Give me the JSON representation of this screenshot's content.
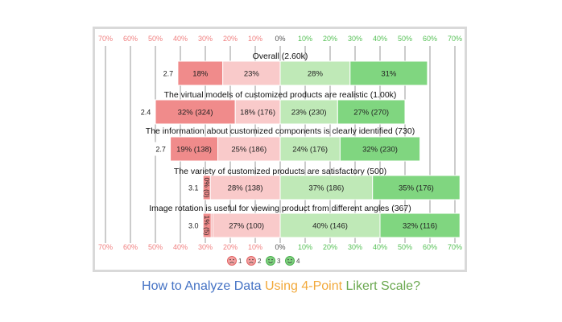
{
  "chart_data": {
    "type": "bar",
    "subtype": "diverging-stacked-bar",
    "x_ticks": [
      80,
      70,
      60,
      50,
      40,
      30,
      20,
      10,
      0,
      10,
      20,
      30,
      40,
      50,
      60,
      70,
      80
    ],
    "x_tick_values": [
      -80,
      -70,
      -60,
      -50,
      -40,
      -30,
      -20,
      -10,
      0,
      10,
      20,
      30,
      40,
      50,
      60,
      70,
      80
    ],
    "x_tick_suffix": "%",
    "xlim": [
      -80,
      80
    ],
    "negative_tick_color": "#f08080",
    "positive_tick_color": "#55c055",
    "zero_tick_color": "#555555",
    "grid": true,
    "legend_position": "bottom",
    "legend": [
      {
        "name": "1",
        "color": "#f4a1a1",
        "icon": "very-sad-face-icon"
      },
      {
        "name": "2",
        "color": "#f4a1a1",
        "icon": "sad-face-icon"
      },
      {
        "name": "3",
        "color": "#7fd17f",
        "icon": "smile-face-icon"
      },
      {
        "name": "4",
        "color": "#7fd17f",
        "icon": "happy-face-icon"
      }
    ],
    "colors": [
      "#f08b8b",
      "#f9caca",
      "#bfe9b7",
      "#80d680"
    ],
    "rows": [
      {
        "title": "Overall (2.60k)",
        "mean": "2.7",
        "values": [
          18,
          23,
          28,
          31
        ],
        "labels": [
          "18%",
          "23%",
          "28%",
          "31%"
        ]
      },
      {
        "title": "The virtual models of customized products are realistic (1.00k)",
        "mean": "2.4",
        "values": [
          32,
          18,
          23,
          27
        ],
        "labels": [
          "32% (324)",
          "18% (176)",
          "23% (230)",
          "27% (270)"
        ]
      },
      {
        "title": "The information about customized components is clearly identified (730)",
        "mean": "2.7",
        "values": [
          19,
          25,
          24,
          32
        ],
        "labels": [
          "19% (138)",
          "25% (186)",
          "24% (176)",
          "32% (230)"
        ]
      },
      {
        "title": "The variety of customized products are satisfactory (500)",
        "mean": "3.1",
        "values": [
          0,
          28,
          37,
          35
        ],
        "labels": [
          "0% (0)",
          "28% (138)",
          "37% (186)",
          "35% (176)"
        ]
      },
      {
        "title": "Image rotation is useful for viewing product from different angles (367)",
        "mean": "3.0",
        "values": [
          1,
          27,
          40,
          32
        ],
        "labels": [
          "1% (5)",
          "27% (100)",
          "40% (146)",
          "32% (116)"
        ]
      }
    ]
  },
  "caption": {
    "part1": "How to Analyze Data ",
    "part2": "Using 4-Point ",
    "part3": "Likert Scale?"
  }
}
